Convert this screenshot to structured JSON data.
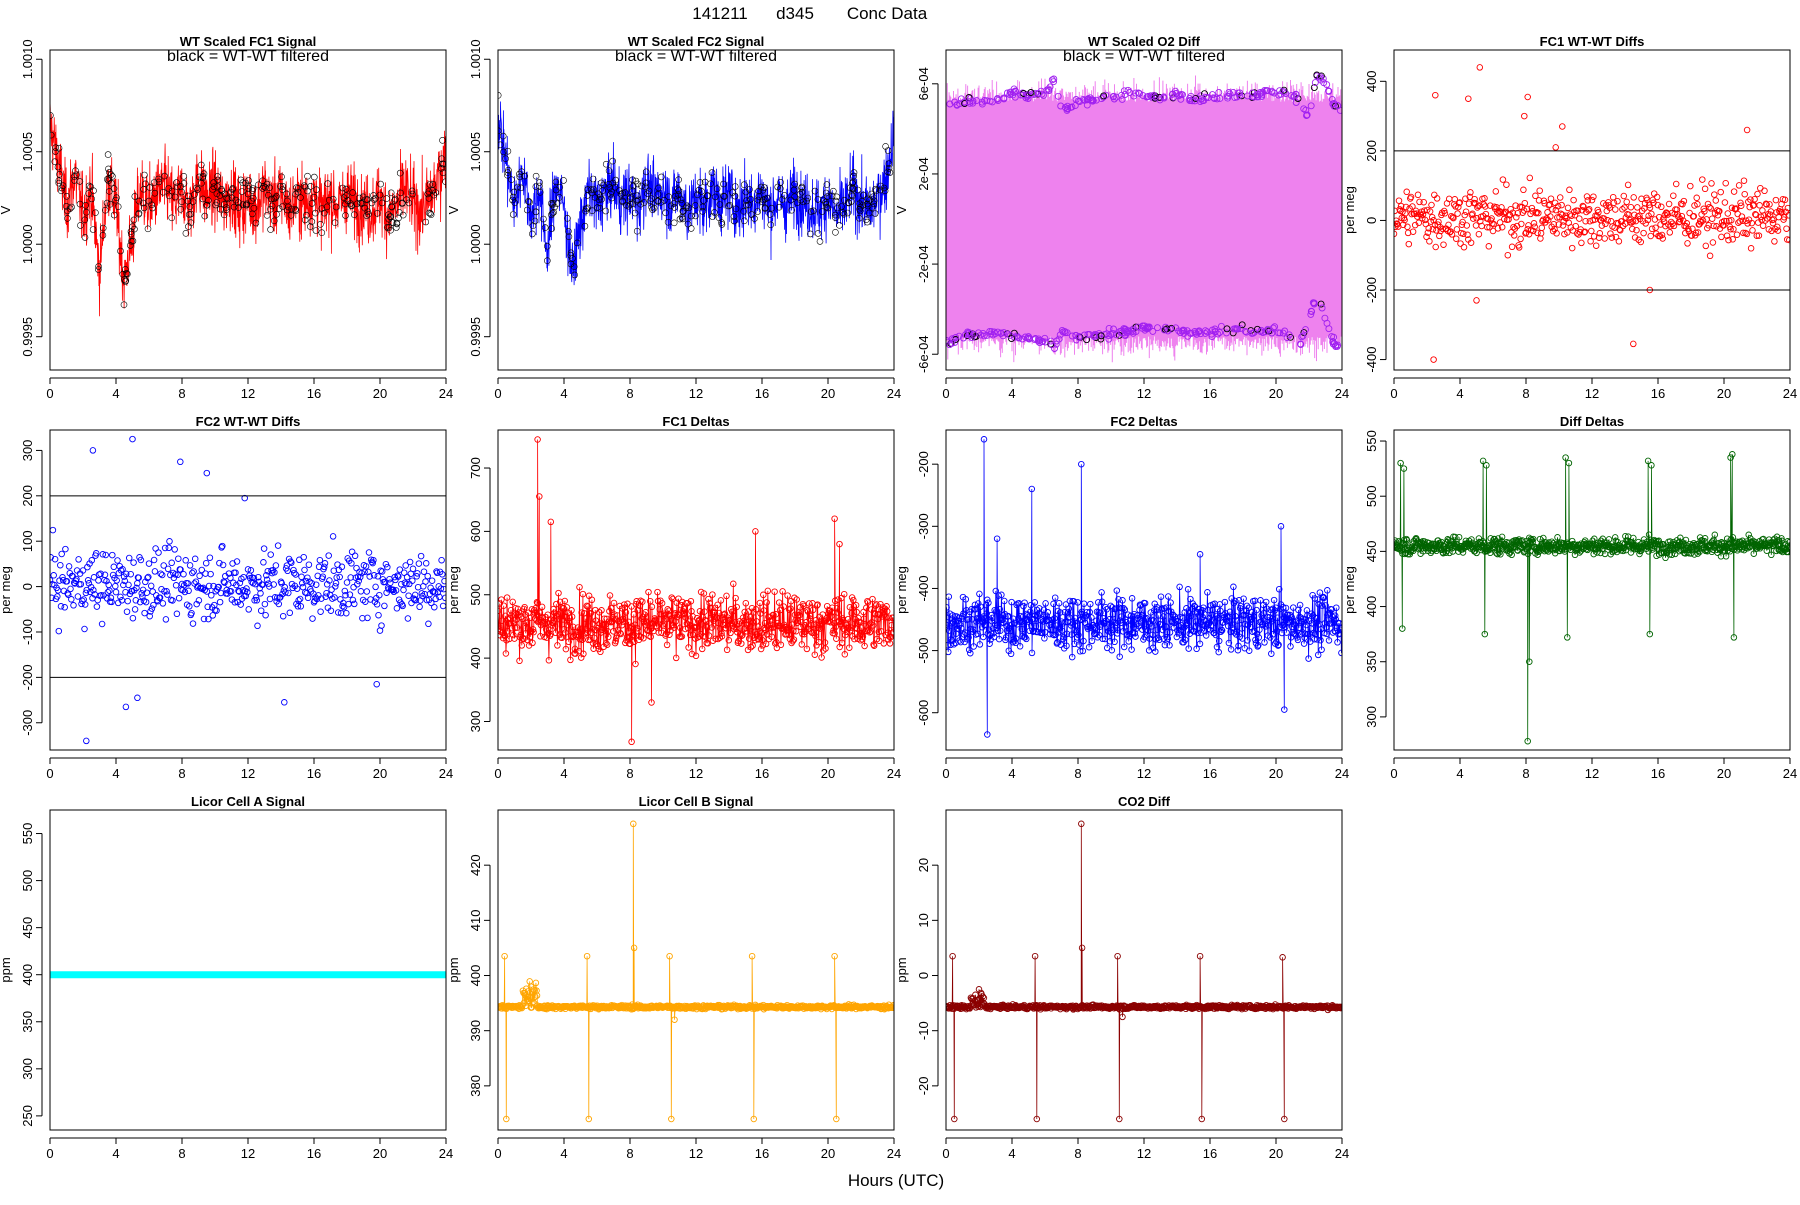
{
  "page": {
    "title_date": "141211",
    "title_day": "d345",
    "title_label": "Conc Data",
    "xlabel": "Hours (UTC)"
  },
  "chart_data": [
    {
      "id": "wt-fc1",
      "type": "line",
      "title": "WT Scaled FC1 Signal",
      "annotation": "black = WT-WT filtered",
      "ylabel": "V",
      "color": "#ff0000",
      "marker_color": "#000000",
      "style": "noise",
      "xlim": [
        0,
        24
      ],
      "ylim": [
        0.99932,
        1.00105
      ],
      "x_ticks": [
        0,
        4,
        8,
        12,
        16,
        20,
        24
      ],
      "y_ticks": [
        0.9995,
        1.0,
        1.0005,
        1.001
      ],
      "y_tick_labels": [
        "0.9995",
        "1.0000",
        "1.0005",
        "1.0010"
      ],
      "hlines": [],
      "series": [
        {
          "name": "FC1 signal",
          "x": [
            0,
            0.5,
            1,
            1.5,
            2,
            2.5,
            3,
            3.5,
            4,
            4.5,
            5,
            5.5,
            6,
            6.5,
            7,
            7.5,
            8,
            8.5,
            9,
            9.5,
            10,
            10.5,
            11,
            11.5,
            12,
            12.5,
            13,
            13.5,
            14,
            14.5,
            15,
            15.5,
            16,
            16.5,
            17,
            17.5,
            18,
            18.5,
            19,
            19.5,
            20,
            20.5,
            21,
            21.5,
            22,
            22.5,
            23,
            23.5,
            24
          ],
          "values": [
            1.00065,
            1.00045,
            1.0002,
            1.00038,
            1.00015,
            1.0003,
            0.99985,
            1.00035,
            1.0002,
            0.9998,
            1.00005,
            1.0003,
            1.0002,
            1.00028,
            1.00032,
            1.00022,
            1.00028,
            1.0002,
            1.00035,
            1.00025,
            1.0003,
            1.00022,
            1.00028,
            1.00018,
            1.00025,
            1.0002,
            1.0003,
            1.00022,
            1.00028,
            1.00018,
            1.00025,
            1.00022,
            1.00028,
            1.00018,
            1.00025,
            1.0002,
            1.00028,
            1.00022,
            1.0002,
            1.00018,
            1.00025,
            1.00015,
            1.0002,
            1.0003,
            1.00022,
            1.00018,
            1.00025,
            1.00035,
            1.0005
          ],
          "spread": 0.00024
        }
      ]
    },
    {
      "id": "wt-fc2",
      "type": "line",
      "title": "WT Scaled FC2 Signal",
      "annotation": "black = WT-WT filtered",
      "ylabel": "V",
      "color": "#0000ff",
      "marker_color": "#000000",
      "style": "noise",
      "xlim": [
        0,
        24
      ],
      "ylim": [
        0.99932,
        1.00105
      ],
      "x_ticks": [
        0,
        4,
        8,
        12,
        16,
        20,
        24
      ],
      "y_ticks": [
        0.9995,
        1.0,
        1.0005,
        1.001
      ],
      "y_tick_labels": [
        "0.9995",
        "1.0000",
        "1.0005",
        "1.0010"
      ],
      "hlines": [],
      "series": [
        {
          "name": "FC2 signal",
          "x": [
            0,
            0.5,
            1,
            1.5,
            2,
            2.5,
            3,
            3.5,
            4,
            4.5,
            5,
            5.5,
            6,
            6.5,
            7,
            7.5,
            8,
            8.5,
            9,
            9.5,
            10,
            10.5,
            11,
            11.5,
            12,
            12.5,
            13,
            13.5,
            14,
            14.5,
            15,
            15.5,
            16,
            16.5,
            17,
            17.5,
            18,
            18.5,
            19,
            19.5,
            20,
            20.5,
            21,
            21.5,
            22,
            22.5,
            23,
            23.5,
            24
          ],
          "values": [
            1.0007,
            1.00045,
            1.0002,
            1.0004,
            1.00015,
            1.0003,
            0.99995,
            1.00035,
            1.0002,
            0.99985,
            1.0001,
            1.0003,
            1.0002,
            1.00028,
            1.00032,
            1.00022,
            1.00028,
            1.0002,
            1.00035,
            1.00025,
            1.0003,
            1.00022,
            1.00028,
            1.00018,
            1.00025,
            1.0002,
            1.0003,
            1.00022,
            1.00028,
            1.00018,
            1.00025,
            1.00022,
            1.00028,
            1.00018,
            1.00025,
            1.0002,
            1.00028,
            1.00022,
            1.0002,
            1.00018,
            1.00025,
            1.00015,
            1.0002,
            1.0003,
            1.00022,
            1.00018,
            1.00025,
            1.00035,
            1.0006
          ],
          "spread": 0.00022
        }
      ]
    },
    {
      "id": "wt-o2diff",
      "type": "line",
      "title": "WT Scaled O2 Diff",
      "annotation": "black = WT-WT filtered",
      "ylabel": "V",
      "color": "#ee82ee",
      "marker_color": "#a020f0",
      "style": "band",
      "xlim": [
        0,
        24
      ],
      "ylim": [
        -0.00067,
        0.00075
      ],
      "x_ticks": [
        0,
        4,
        8,
        12,
        16,
        20,
        24
      ],
      "y_ticks": [
        -0.0006,
        -0.0002,
        0.0002,
        0.0006
      ],
      "y_tick_labels": [
        "-6e-04",
        "-2e-04",
        "2e-04",
        "6e-04"
      ],
      "hlines": [],
      "series": [
        {
          "name": "upper",
          "x": [
            0,
            1,
            2,
            3,
            4,
            5,
            6,
            6.6,
            7,
            8,
            9,
            10,
            11,
            12,
            13,
            14,
            15,
            16,
            17,
            18,
            19,
            20,
            21,
            21.5,
            22,
            22.5,
            23,
            23.5,
            24
          ],
          "values": [
            0.0005,
            0.00052,
            0.00052,
            0.00053,
            0.00056,
            0.00055,
            0.00056,
            0.00063,
            0.00048,
            0.00052,
            0.00053,
            0.00054,
            0.00056,
            0.00055,
            0.00054,
            0.00055,
            0.00053,
            0.00054,
            0.00055,
            0.00055,
            0.00055,
            0.00057,
            0.00056,
            0.00052,
            0.00045,
            0.00065,
            0.0006,
            0.00052,
            0.00048
          ]
        },
        {
          "name": "lower",
          "x": [
            0,
            1,
            2,
            3,
            4,
            5,
            6,
            6.6,
            7,
            8,
            9,
            10,
            11,
            12,
            13,
            14,
            15,
            16,
            17,
            18,
            19,
            20,
            21,
            21.5,
            22,
            22.5,
            23,
            23.5,
            24
          ],
          "values": [
            -0.00055,
            -0.00052,
            -0.00051,
            -0.0005,
            -0.00052,
            -0.00053,
            -0.00054,
            -0.00057,
            -0.0005,
            -0.00052,
            -0.00052,
            -0.00051,
            -0.0005,
            -0.00048,
            -0.00049,
            -0.0005,
            -0.00051,
            -0.0005,
            -0.00049,
            -0.00049,
            -0.0005,
            -0.00049,
            -0.00053,
            -0.00055,
            -0.00045,
            -0.00032,
            -0.00045,
            -0.00055,
            -0.00058
          ]
        }
      ]
    },
    {
      "id": "fc1-wtwt",
      "type": "scatter",
      "title": "FC1 WT-WT Diffs",
      "annotation": "",
      "ylabel": "per meg",
      "color": "#ff0000",
      "style": "scatter",
      "xlim": [
        0,
        24
      ],
      "ylim": [
        -430,
        490
      ],
      "x_ticks": [
        0,
        4,
        8,
        12,
        16,
        20,
        24
      ],
      "y_ticks": [
        -400,
        -200,
        0,
        200,
        400
      ],
      "y_tick_labels": [
        "-400",
        "-200",
        "0",
        "200",
        "400"
      ],
      "hlines": [
        200,
        -200
      ],
      "series": [
        {
          "name": "FC1 WT-WT",
          "n": 560,
          "center": 10,
          "spread": 85,
          "outliers_x": [
            2.5,
            4.5,
            5.2,
            7.9,
            8.1,
            2.4,
            9.8,
            14.5,
            21.4,
            15.5,
            10.2,
            5.0
          ],
          "outliers_y": [
            360,
            350,
            440,
            300,
            355,
            -400,
            210,
            -355,
            260,
            -200,
            270,
            -230
          ]
        }
      ]
    },
    {
      "id": "fc2-wtwt",
      "type": "scatter",
      "title": "FC2 WT-WT Diffs",
      "annotation": "",
      "ylabel": "per meg",
      "color": "#0000ff",
      "style": "scatter",
      "xlim": [
        0,
        24
      ],
      "ylim": [
        -360,
        345
      ],
      "x_ticks": [
        0,
        4,
        8,
        12,
        16,
        20,
        24
      ],
      "y_ticks": [
        -300,
        -200,
        -100,
        0,
        100,
        200,
        300
      ],
      "y_tick_labels": [
        "-300",
        "-200",
        "-100",
        "0",
        "100",
        "200",
        "300"
      ],
      "hlines": [
        200,
        -200
      ],
      "series": [
        {
          "name": "FC2 WT-WT",
          "n": 540,
          "center": 5,
          "spread": 75,
          "outliers_x": [
            2.2,
            5.0,
            2.6,
            7.9,
            9.5,
            4.6,
            14.2,
            19.8,
            11.8,
            5.3
          ],
          "outliers_y": [
            -340,
            325,
            300,
            275,
            250,
            -265,
            -255,
            -215,
            195,
            -245
          ]
        }
      ]
    },
    {
      "id": "fc1-deltas",
      "type": "line",
      "title": "FC1 Deltas",
      "annotation": "",
      "ylabel": "per meg",
      "color": "#ff0000",
      "style": "linepoints",
      "xlim": [
        0,
        24
      ],
      "ylim": [
        255,
        760
      ],
      "x_ticks": [
        0,
        4,
        8,
        12,
        16,
        20,
        24
      ],
      "y_ticks": [
        300,
        400,
        500,
        600,
        700
      ],
      "y_tick_labels": [
        "300",
        "400",
        "500",
        "600",
        "700"
      ],
      "hlines": [],
      "series": [
        {
          "name": "FC1 delta",
          "n": 700,
          "center": 455,
          "spread": 40,
          "spikes_x": [
            2.4,
            2.5,
            8.1,
            3.2,
            20.4,
            15.6,
            9.3,
            20.7
          ],
          "spikes_y": [
            745,
            655,
            268,
            615,
            620,
            600,
            330,
            580
          ]
        }
      ]
    },
    {
      "id": "fc2-deltas",
      "type": "line",
      "title": "FC2 Deltas",
      "annotation": "",
      "ylabel": "per meg",
      "color": "#0000ff",
      "style": "linepoints",
      "xlim": [
        0,
        24
      ],
      "ylim": [
        -660,
        -145
      ],
      "x_ticks": [
        0,
        4,
        8,
        12,
        16,
        20,
        24
      ],
      "y_ticks": [
        -600,
        -500,
        -400,
        -300,
        -200
      ],
      "y_tick_labels": [
        "-600",
        "-500",
        "-400",
        "-300",
        "-200"
      ],
      "hlines": [],
      "series": [
        {
          "name": "FC2 delta",
          "n": 700,
          "center": -455,
          "spread": 38,
          "spikes_x": [
            2.3,
            2.5,
            8.2,
            5.2,
            20.3,
            20.5,
            3.1,
            15.4
          ],
          "spikes_y": [
            -160,
            -635,
            -200,
            -240,
            -300,
            -595,
            -320,
            -345
          ]
        }
      ]
    },
    {
      "id": "diff-deltas",
      "type": "line",
      "title": "Diff Deltas",
      "annotation": "",
      "ylabel": "per meg",
      "color": "#006400",
      "style": "linepoints",
      "xlim": [
        0,
        24
      ],
      "ylim": [
        270,
        560
      ],
      "x_ticks": [
        0,
        4,
        8,
        12,
        16,
        20,
        24
      ],
      "y_ticks": [
        300,
        350,
        400,
        450,
        500,
        550
      ],
      "y_tick_labels": [
        "300",
        "350",
        "400",
        "450",
        "500",
        "550"
      ],
      "hlines": [],
      "series": [
        {
          "name": "Diff delta",
          "n": 700,
          "center": 455,
          "spread": 7,
          "spikes_x": [
            0.4,
            0.5,
            0.6,
            5.4,
            5.5,
            5.6,
            10.4,
            10.5,
            10.6,
            15.4,
            15.5,
            15.6,
            20.5,
            20.6,
            20.4,
            8.1,
            8.2
          ],
          "spikes_y": [
            530,
            380,
            525,
            532,
            375,
            528,
            535,
            372,
            530,
            532,
            375,
            528,
            538,
            372,
            535,
            278,
            350
          ]
        }
      ]
    },
    {
      "id": "licor-a",
      "type": "line",
      "title": "Licor Cell A Signal",
      "annotation": "",
      "ylabel": "ppm",
      "color": "#00ffff",
      "style": "flat",
      "xlim": [
        0,
        24
      ],
      "ylim": [
        235,
        575
      ],
      "x_ticks": [
        0,
        4,
        8,
        12,
        16,
        20,
        24
      ],
      "y_ticks": [
        250,
        300,
        350,
        400,
        450,
        500,
        550
      ],
      "y_tick_labels": [
        "250",
        "300",
        "350",
        "400",
        "450",
        "500",
        "550"
      ],
      "hlines": [],
      "series": [
        {
          "name": "Cell A",
          "x": [
            0,
            24
          ],
          "values": [
            400,
            400
          ]
        }
      ]
    },
    {
      "id": "licor-b",
      "type": "line",
      "title": "Licor Cell B Signal",
      "annotation": "",
      "ylabel": "ppm",
      "color": "#ffa500",
      "style": "linepoints-quiet",
      "xlim": [
        0,
        24
      ],
      "ylim": [
        372,
        430
      ],
      "x_ticks": [
        0,
        4,
        8,
        12,
        16,
        20,
        24
      ],
      "y_ticks": [
        380,
        390,
        400,
        410,
        420
      ],
      "y_tick_labels": [
        "380",
        "390",
        "400",
        "410",
        "420"
      ],
      "hlines": [],
      "series": [
        {
          "name": "Cell B",
          "n": 700,
          "center": 394.3,
          "spread": 0.4,
          "spikes_x": [
            0.4,
            0.5,
            5.4,
            5.5,
            10.4,
            10.5,
            15.4,
            15.5,
            20.4,
            20.5,
            8.2,
            8.25,
            2.0,
            10.7
          ],
          "spikes_y": [
            403.5,
            374,
            403.5,
            374,
            403.5,
            374,
            403.5,
            374,
            403.5,
            374,
            427.5,
            405,
            398,
            392
          ]
        }
      ]
    },
    {
      "id": "co2-diff",
      "type": "line",
      "title": "CO2 Diff",
      "annotation": "",
      "ylabel": "ppm",
      "color": "#8b0000",
      "style": "linepoints-quiet",
      "xlim": [
        0,
        24
      ],
      "ylim": [
        -28,
        30
      ],
      "x_ticks": [
        0,
        4,
        8,
        12,
        16,
        20,
        24
      ],
      "y_ticks": [
        -20,
        -10,
        0,
        10,
        20
      ],
      "y_tick_labels": [
        "-20",
        "-10",
        "0",
        "10",
        "20"
      ],
      "hlines": [],
      "series": [
        {
          "name": "CO2 diff",
          "n": 700,
          "center": -5.7,
          "spread": 0.4,
          "spikes_x": [
            0.4,
            0.5,
            5.4,
            5.5,
            10.4,
            10.5,
            15.4,
            15.5,
            20.4,
            20.5,
            8.2,
            8.25,
            2.0,
            10.7
          ],
          "spikes_y": [
            3.5,
            -26,
            3.5,
            -26,
            3.5,
            -26,
            3.5,
            -26,
            3.3,
            -26,
            27.5,
            5,
            -2.5,
            -7.5
          ]
        }
      ]
    }
  ]
}
